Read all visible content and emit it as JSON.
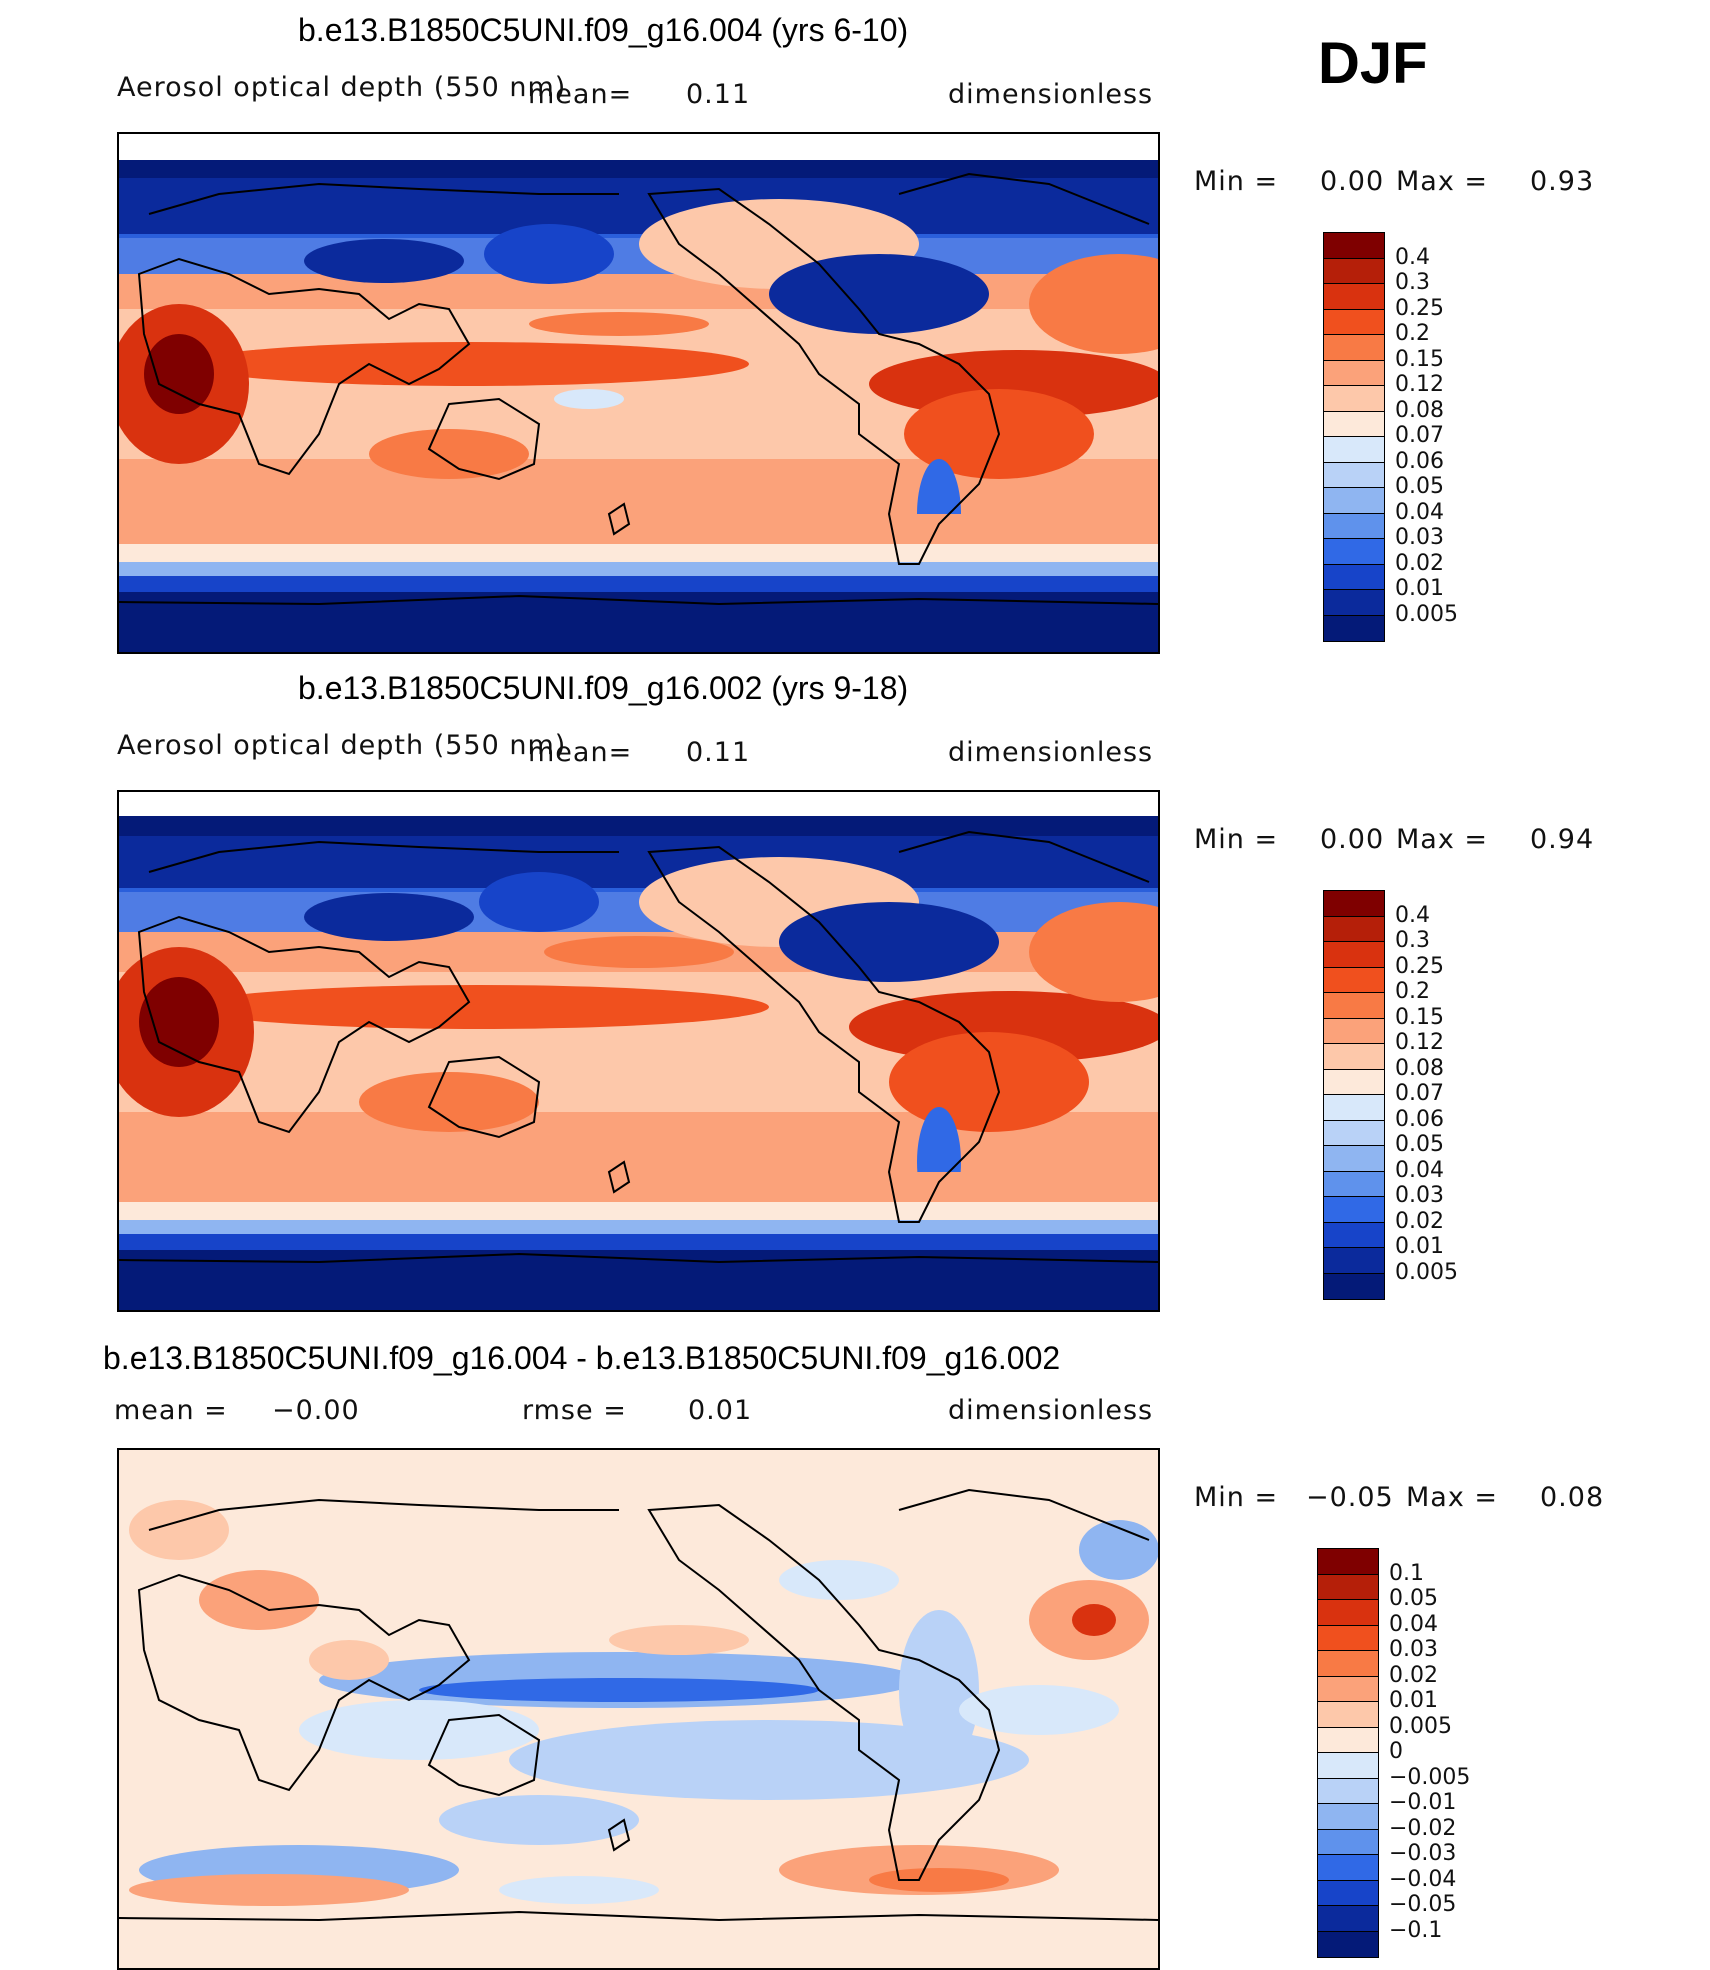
{
  "season": "DJF",
  "panels": [
    {
      "title": "b.e13.B1850C5UNI.f09_g16.004 (yrs 6-10)",
      "variable": "Aerosol optical depth (550 nm)",
      "mean_label": "mean=",
      "mean_value": "0.11",
      "units": "dimensionless",
      "min_label": "Min =",
      "min_value": "0.00",
      "max_label": "Max =",
      "max_value": "0.93",
      "levels": [
        "0.4",
        "0.3",
        "0.25",
        "0.2",
        "0.15",
        "0.12",
        "0.08",
        "0.07",
        "0.06",
        "0.05",
        "0.04",
        "0.03",
        "0.02",
        "0.01",
        "0.005"
      ],
      "colors": [
        "#7f0000",
        "#b51f09",
        "#d9320f",
        "#f0501e",
        "#f87a45",
        "#fba27a",
        "#fdc8aa",
        "#fde9da",
        "#d8e8fa",
        "#b9d2f7",
        "#8fb5f1",
        "#5f92ec",
        "#3069e6",
        "#1744c9",
        "#0b2a9c",
        "#041a78"
      ]
    },
    {
      "title": "b.e13.B1850C5UNI.f09_g16.002 (yrs 9-18)",
      "variable": "Aerosol optical depth (550 nm)",
      "mean_label": "mean=",
      "mean_value": "0.11",
      "units": "dimensionless",
      "min_label": "Min =",
      "min_value": "0.00",
      "max_label": "Max =",
      "max_value": "0.94",
      "levels": [
        "0.4",
        "0.3",
        "0.25",
        "0.2",
        "0.15",
        "0.12",
        "0.08",
        "0.07",
        "0.06",
        "0.05",
        "0.04",
        "0.03",
        "0.02",
        "0.01",
        "0.005"
      ],
      "colors": [
        "#7f0000",
        "#b51f09",
        "#d9320f",
        "#f0501e",
        "#f87a45",
        "#fba27a",
        "#fdc8aa",
        "#fde9da",
        "#d8e8fa",
        "#b9d2f7",
        "#8fb5f1",
        "#5f92ec",
        "#3069e6",
        "#1744c9",
        "#0b2a9c",
        "#041a78"
      ]
    },
    {
      "title": "b.e13.B1850C5UNI.f09_g16.004 - b.e13.B1850C5UNI.f09_g16.002",
      "mean_label": "mean =",
      "mean_value": "−0.00",
      "rmse_label": "rmse =",
      "rmse_value": "0.01",
      "units": "dimensionless",
      "min_label": "Min =",
      "min_value": "−0.05",
      "max_label": "Max =",
      "max_value": "0.08",
      "levels": [
        "0.1",
        "0.05",
        "0.04",
        "0.03",
        "0.02",
        "0.01",
        "0.005",
        "0",
        "−0.005",
        "−0.01",
        "−0.02",
        "−0.03",
        "−0.04",
        "−0.05",
        "−0.1"
      ],
      "colors": [
        "#7f0000",
        "#b51f09",
        "#d9320f",
        "#f0501e",
        "#f87a45",
        "#fba27a",
        "#fdc8aa",
        "#fde9da",
        "#d8e8fa",
        "#b9d2f7",
        "#8fb5f1",
        "#5f92ec",
        "#3069e6",
        "#1744c9",
        "#0b2a9c",
        "#041a78"
      ]
    }
  ]
}
